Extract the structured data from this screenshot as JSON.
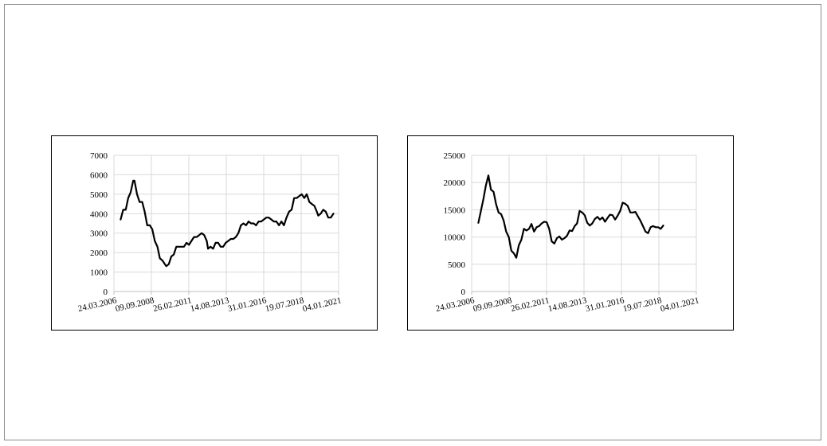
{
  "colors": {
    "line": "#000000",
    "grid": "#d9d9d9",
    "axis": "#bfbfbf",
    "border": "#000000"
  },
  "chart_data": [
    {
      "type": "line",
      "title": "",
      "xlabel": "",
      "ylabel": "",
      "grid": true,
      "ylim": [
        0,
        7000
      ],
      "yticks": [
        0,
        1000,
        2000,
        3000,
        4000,
        5000,
        6000,
        7000
      ],
      "ytick_labels": [
        "0",
        "1000",
        "2000",
        "3000",
        "4000",
        "5000",
        "6000",
        "7000"
      ],
      "xlim": [
        "24.03.2006",
        "04.01.2021"
      ],
      "xticks": [
        "24.03.2006",
        "09.09.2008",
        "26.02.2011",
        "14.08.2013",
        "31.01.2016",
        "19.07.2018",
        "04.01.2021"
      ],
      "series": [
        {
          "values": [
            [
              "01.09.2006",
              3700
            ],
            [
              "01.11.2006",
              4200
            ],
            [
              "01.01.2007",
              4200
            ],
            [
              "01.03.2007",
              4800
            ],
            [
              "01.05.2007",
              5100
            ],
            [
              "01.07.2007",
              5700
            ],
            [
              "01.08.2007",
              5700
            ],
            [
              "01.10.2007",
              5000
            ],
            [
              "01.12.2007",
              4600
            ],
            [
              "01.02.2008",
              4600
            ],
            [
              "01.04.2008",
              4100
            ],
            [
              "01.06.2008",
              3400
            ],
            [
              "01.08.2008",
              3400
            ],
            [
              "01.10.2008",
              3200
            ],
            [
              "01.12.2008",
              2600
            ],
            [
              "01.02.2009",
              2300
            ],
            [
              "01.04.2009",
              1700
            ],
            [
              "01.06.2009",
              1600
            ],
            [
              "01.08.2009",
              1400
            ],
            [
              "01.09.2009",
              1300
            ],
            [
              "01.11.2009",
              1400
            ],
            [
              "01.01.2010",
              1800
            ],
            [
              "01.03.2010",
              1900
            ],
            [
              "01.05.2010",
              2300
            ],
            [
              "01.07.2010",
              2300
            ],
            [
              "01.09.2010",
              2300
            ],
            [
              "01.11.2010",
              2300
            ],
            [
              "01.01.2011",
              2500
            ],
            [
              "01.03.2011",
              2400
            ],
            [
              "01.05.2011",
              2600
            ],
            [
              "01.07.2011",
              2800
            ],
            [
              "01.09.2011",
              2800
            ],
            [
              "01.11.2011",
              2900
            ],
            [
              "01.01.2012",
              3000
            ],
            [
              "01.03.2012",
              2900
            ],
            [
              "01.05.2012",
              2600
            ],
            [
              "01.06.2012",
              2200
            ],
            [
              "01.08.2012",
              2300
            ],
            [
              "01.10.2012",
              2200
            ],
            [
              "01.12.2012",
              2500
            ],
            [
              "01.02.2013",
              2500
            ],
            [
              "01.04.2013",
              2300
            ],
            [
              "01.06.2013",
              2300
            ],
            [
              "01.08.2013",
              2500
            ],
            [
              "01.10.2013",
              2600
            ],
            [
              "01.12.2013",
              2700
            ],
            [
              "01.02.2014",
              2700
            ],
            [
              "01.04.2014",
              2800
            ],
            [
              "01.06.2014",
              3000
            ],
            [
              "01.08.2014",
              3400
            ],
            [
              "01.10.2014",
              3500
            ],
            [
              "01.12.2014",
              3400
            ],
            [
              "01.02.2015",
              3600
            ],
            [
              "01.04.2015",
              3500
            ],
            [
              "01.06.2015",
              3500
            ],
            [
              "01.08.2015",
              3400
            ],
            [
              "01.10.2015",
              3600
            ],
            [
              "01.12.2015",
              3600
            ],
            [
              "01.02.2016",
              3700
            ],
            [
              "01.04.2016",
              3800
            ],
            [
              "01.06.2016",
              3800
            ],
            [
              "01.08.2016",
              3700
            ],
            [
              "01.10.2016",
              3600
            ],
            [
              "01.12.2016",
              3600
            ],
            [
              "01.02.2017",
              3400
            ],
            [
              "01.04.2017",
              3600
            ],
            [
              "01.06.2017",
              3400
            ],
            [
              "01.08.2017",
              3800
            ],
            [
              "01.10.2017",
              4100
            ],
            [
              "01.12.2017",
              4200
            ],
            [
              "01.02.2018",
              4800
            ],
            [
              "01.04.2018",
              4800
            ],
            [
              "01.06.2018",
              4900
            ],
            [
              "01.08.2018",
              5000
            ],
            [
              "01.10.2018",
              4800
            ],
            [
              "01.12.2018",
              5000
            ],
            [
              "01.02.2019",
              4600
            ],
            [
              "01.04.2019",
              4500
            ],
            [
              "01.06.2019",
              4400
            ],
            [
              "01.08.2019",
              4100
            ],
            [
              "01.09.2019",
              3900
            ],
            [
              "01.11.2019",
              4000
            ],
            [
              "01.01.2020",
              4200
            ],
            [
              "01.03.2020",
              4100
            ],
            [
              "01.05.2020",
              3800
            ],
            [
              "01.07.2020",
              3800
            ],
            [
              "01.09.2020",
              4000
            ]
          ]
        }
      ]
    },
    {
      "type": "line",
      "title": "",
      "xlabel": "",
      "ylabel": "",
      "grid": true,
      "ylim": [
        0,
        25000
      ],
      "yticks": [
        0,
        5000,
        10000,
        15000,
        20000,
        25000
      ],
      "ytick_labels": [
        "0",
        "5000",
        "10000",
        "15000",
        "20000",
        "25000"
      ],
      "xlim": [
        "24.03.2006",
        "04.01.2021"
      ],
      "xticks": [
        "24.03.2006",
        "09.09.2008",
        "26.02.2011",
        "14.08.2013",
        "31.01.2016",
        "19.07.2018",
        "04.01.2021"
      ],
      "series": [
        {
          "values": [
            [
              "01.09.2006",
              12600
            ],
            [
              "01.11.2006",
              14800
            ],
            [
              "01.01.2007",
              17000
            ],
            [
              "01.03.2007",
              19500
            ],
            [
              "01.05.2007",
              21300
            ],
            [
              "01.07.2007",
              18700
            ],
            [
              "01.09.2007",
              18300
            ],
            [
              "01.11.2007",
              16000
            ],
            [
              "01.01.2008",
              14500
            ],
            [
              "01.03.2008",
              14200
            ],
            [
              "01.05.2008",
              13000
            ],
            [
              "01.07.2008",
              11000
            ],
            [
              "01.09.2008",
              10000
            ],
            [
              "01.11.2008",
              7500
            ],
            [
              "01.01.2009",
              7000
            ],
            [
              "01.03.2009",
              6200
            ],
            [
              "01.05.2009",
              8500
            ],
            [
              "01.07.2009",
              9500
            ],
            [
              "01.09.2009",
              11500
            ],
            [
              "01.11.2009",
              11200
            ],
            [
              "01.01.2010",
              11500
            ],
            [
              "01.03.2010",
              12400
            ],
            [
              "01.05.2010",
              11000
            ],
            [
              "01.07.2010",
              11800
            ],
            [
              "01.09.2010",
              12000
            ],
            [
              "01.11.2010",
              12500
            ],
            [
              "01.01.2011",
              12800
            ],
            [
              "01.03.2011",
              12700
            ],
            [
              "01.05.2011",
              11500
            ],
            [
              "01.07.2011",
              9200
            ],
            [
              "01.09.2011",
              8800
            ],
            [
              "01.11.2011",
              9800
            ],
            [
              "01.01.2012",
              10100
            ],
            [
              "01.03.2012",
              9500
            ],
            [
              "01.05.2012",
              9800
            ],
            [
              "01.07.2012",
              10200
            ],
            [
              "01.09.2012",
              11200
            ],
            [
              "01.11.2012",
              11100
            ],
            [
              "01.01.2013",
              12000
            ],
            [
              "01.03.2013",
              12500
            ],
            [
              "01.05.2013",
              14800
            ],
            [
              "01.07.2013",
              14500
            ],
            [
              "01.09.2013",
              14000
            ],
            [
              "01.11.2013",
              12600
            ],
            [
              "01.01.2014",
              12100
            ],
            [
              "01.03.2014",
              12500
            ],
            [
              "01.05.2014",
              13300
            ],
            [
              "01.07.2014",
              13700
            ],
            [
              "01.09.2014",
              13200
            ],
            [
              "01.11.2014",
              13600
            ],
            [
              "01.01.2015",
              12800
            ],
            [
              "01.03.2015",
              13500
            ],
            [
              "01.05.2015",
              14100
            ],
            [
              "01.07.2015",
              14000
            ],
            [
              "01.09.2015",
              13200
            ],
            [
              "01.11.2015",
              13900
            ],
            [
              "01.01.2016",
              14800
            ],
            [
              "01.03.2016",
              16300
            ],
            [
              "01.05.2016",
              16100
            ],
            [
              "01.07.2016",
              15700
            ],
            [
              "01.09.2016",
              14500
            ],
            [
              "01.11.2016",
              14500
            ],
            [
              "01.01.2017",
              14600
            ],
            [
              "01.03.2017",
              13800
            ],
            [
              "01.05.2017",
              13000
            ],
            [
              "01.07.2017",
              12000
            ],
            [
              "01.09.2017",
              11000
            ],
            [
              "01.11.2017",
              10700
            ],
            [
              "01.01.2018",
              11800
            ],
            [
              "01.03.2018",
              12000
            ],
            [
              "01.05.2018",
              11800
            ],
            [
              "01.07.2018",
              11800
            ],
            [
              "01.09.2018",
              11500
            ],
            [
              "01.11.2018",
              12100
            ]
          ]
        }
      ]
    }
  ]
}
